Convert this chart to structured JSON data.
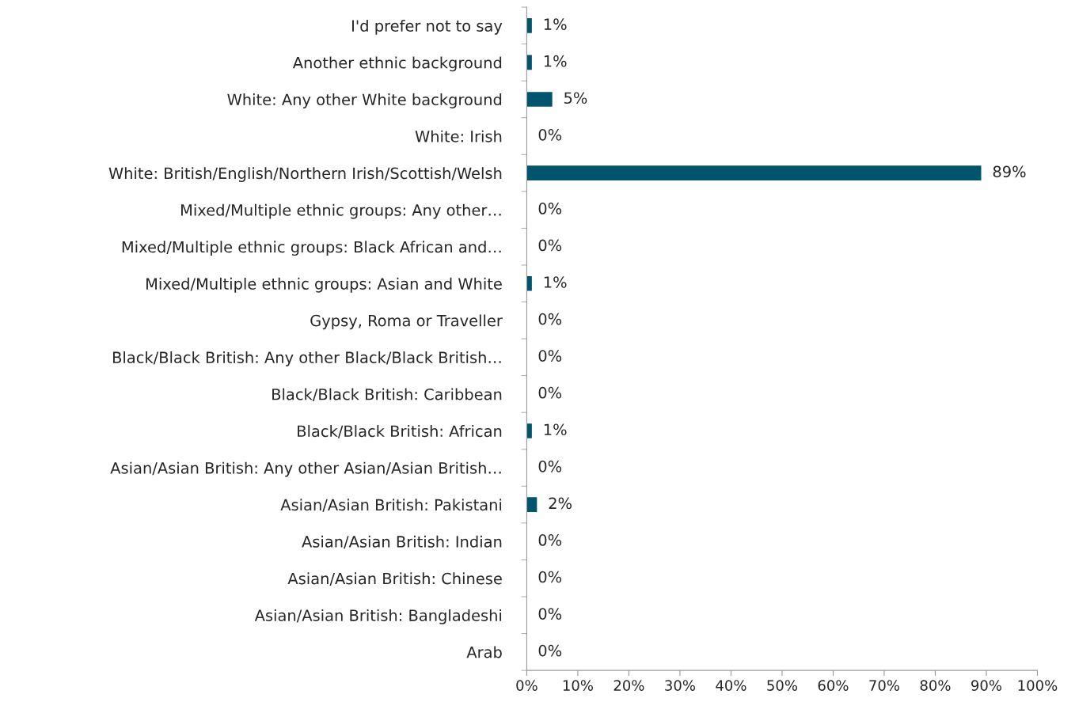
{
  "chart_data": {
    "type": "bar",
    "orientation": "horizontal",
    "categories": [
      "I'd prefer not to say",
      "Another ethnic background",
      "White: Any other White background",
      "White: Irish",
      "White: British/English/Northern Irish/Scottish/Welsh",
      "Mixed/Multiple ethnic groups: Any other…",
      "Mixed/Multiple ethnic groups: Black African and…",
      "Mixed/Multiple ethnic groups: Asian and White",
      "Gypsy, Roma or Traveller",
      "Black/Black British: Any other Black/Black British…",
      "Black/Black British: Caribbean",
      "Black/Black British: African",
      "Asian/Asian British: Any other Asian/Asian British…",
      "Asian/Asian British: Pakistani",
      "Asian/Asian British: Indian",
      "Asian/Asian British: Chinese",
      "Asian/Asian British: Bangladeshi",
      "Arab"
    ],
    "values": [
      1,
      1,
      5,
      0,
      89,
      0,
      0,
      1,
      0,
      0,
      0,
      1,
      0,
      2,
      0,
      0,
      0,
      0
    ],
    "value_labels": [
      "1%",
      "1%",
      "5%",
      "0%",
      "89%",
      "0%",
      "0%",
      "1%",
      "0%",
      "0%",
      "0%",
      "1%",
      "0%",
      "2%",
      "0%",
      "0%",
      "0%",
      "0%"
    ],
    "color": "#00546e",
    "xlim": [
      0,
      100
    ],
    "xticks": [
      {
        "value": 0,
        "label": "0%"
      },
      {
        "value": 10,
        "label": "10%"
      },
      {
        "value": 20,
        "label": "20%"
      },
      {
        "value": 30,
        "label": "30%"
      },
      {
        "value": 40,
        "label": "40%"
      },
      {
        "value": 50,
        "label": "50%"
      },
      {
        "value": 60,
        "label": "60%"
      },
      {
        "value": 70,
        "label": "70%"
      },
      {
        "value": 80,
        "label": "80%"
      },
      {
        "value": 90,
        "label": "90%"
      },
      {
        "value": 100,
        "label": "100%"
      }
    ],
    "grid": false,
    "legend": false
  }
}
